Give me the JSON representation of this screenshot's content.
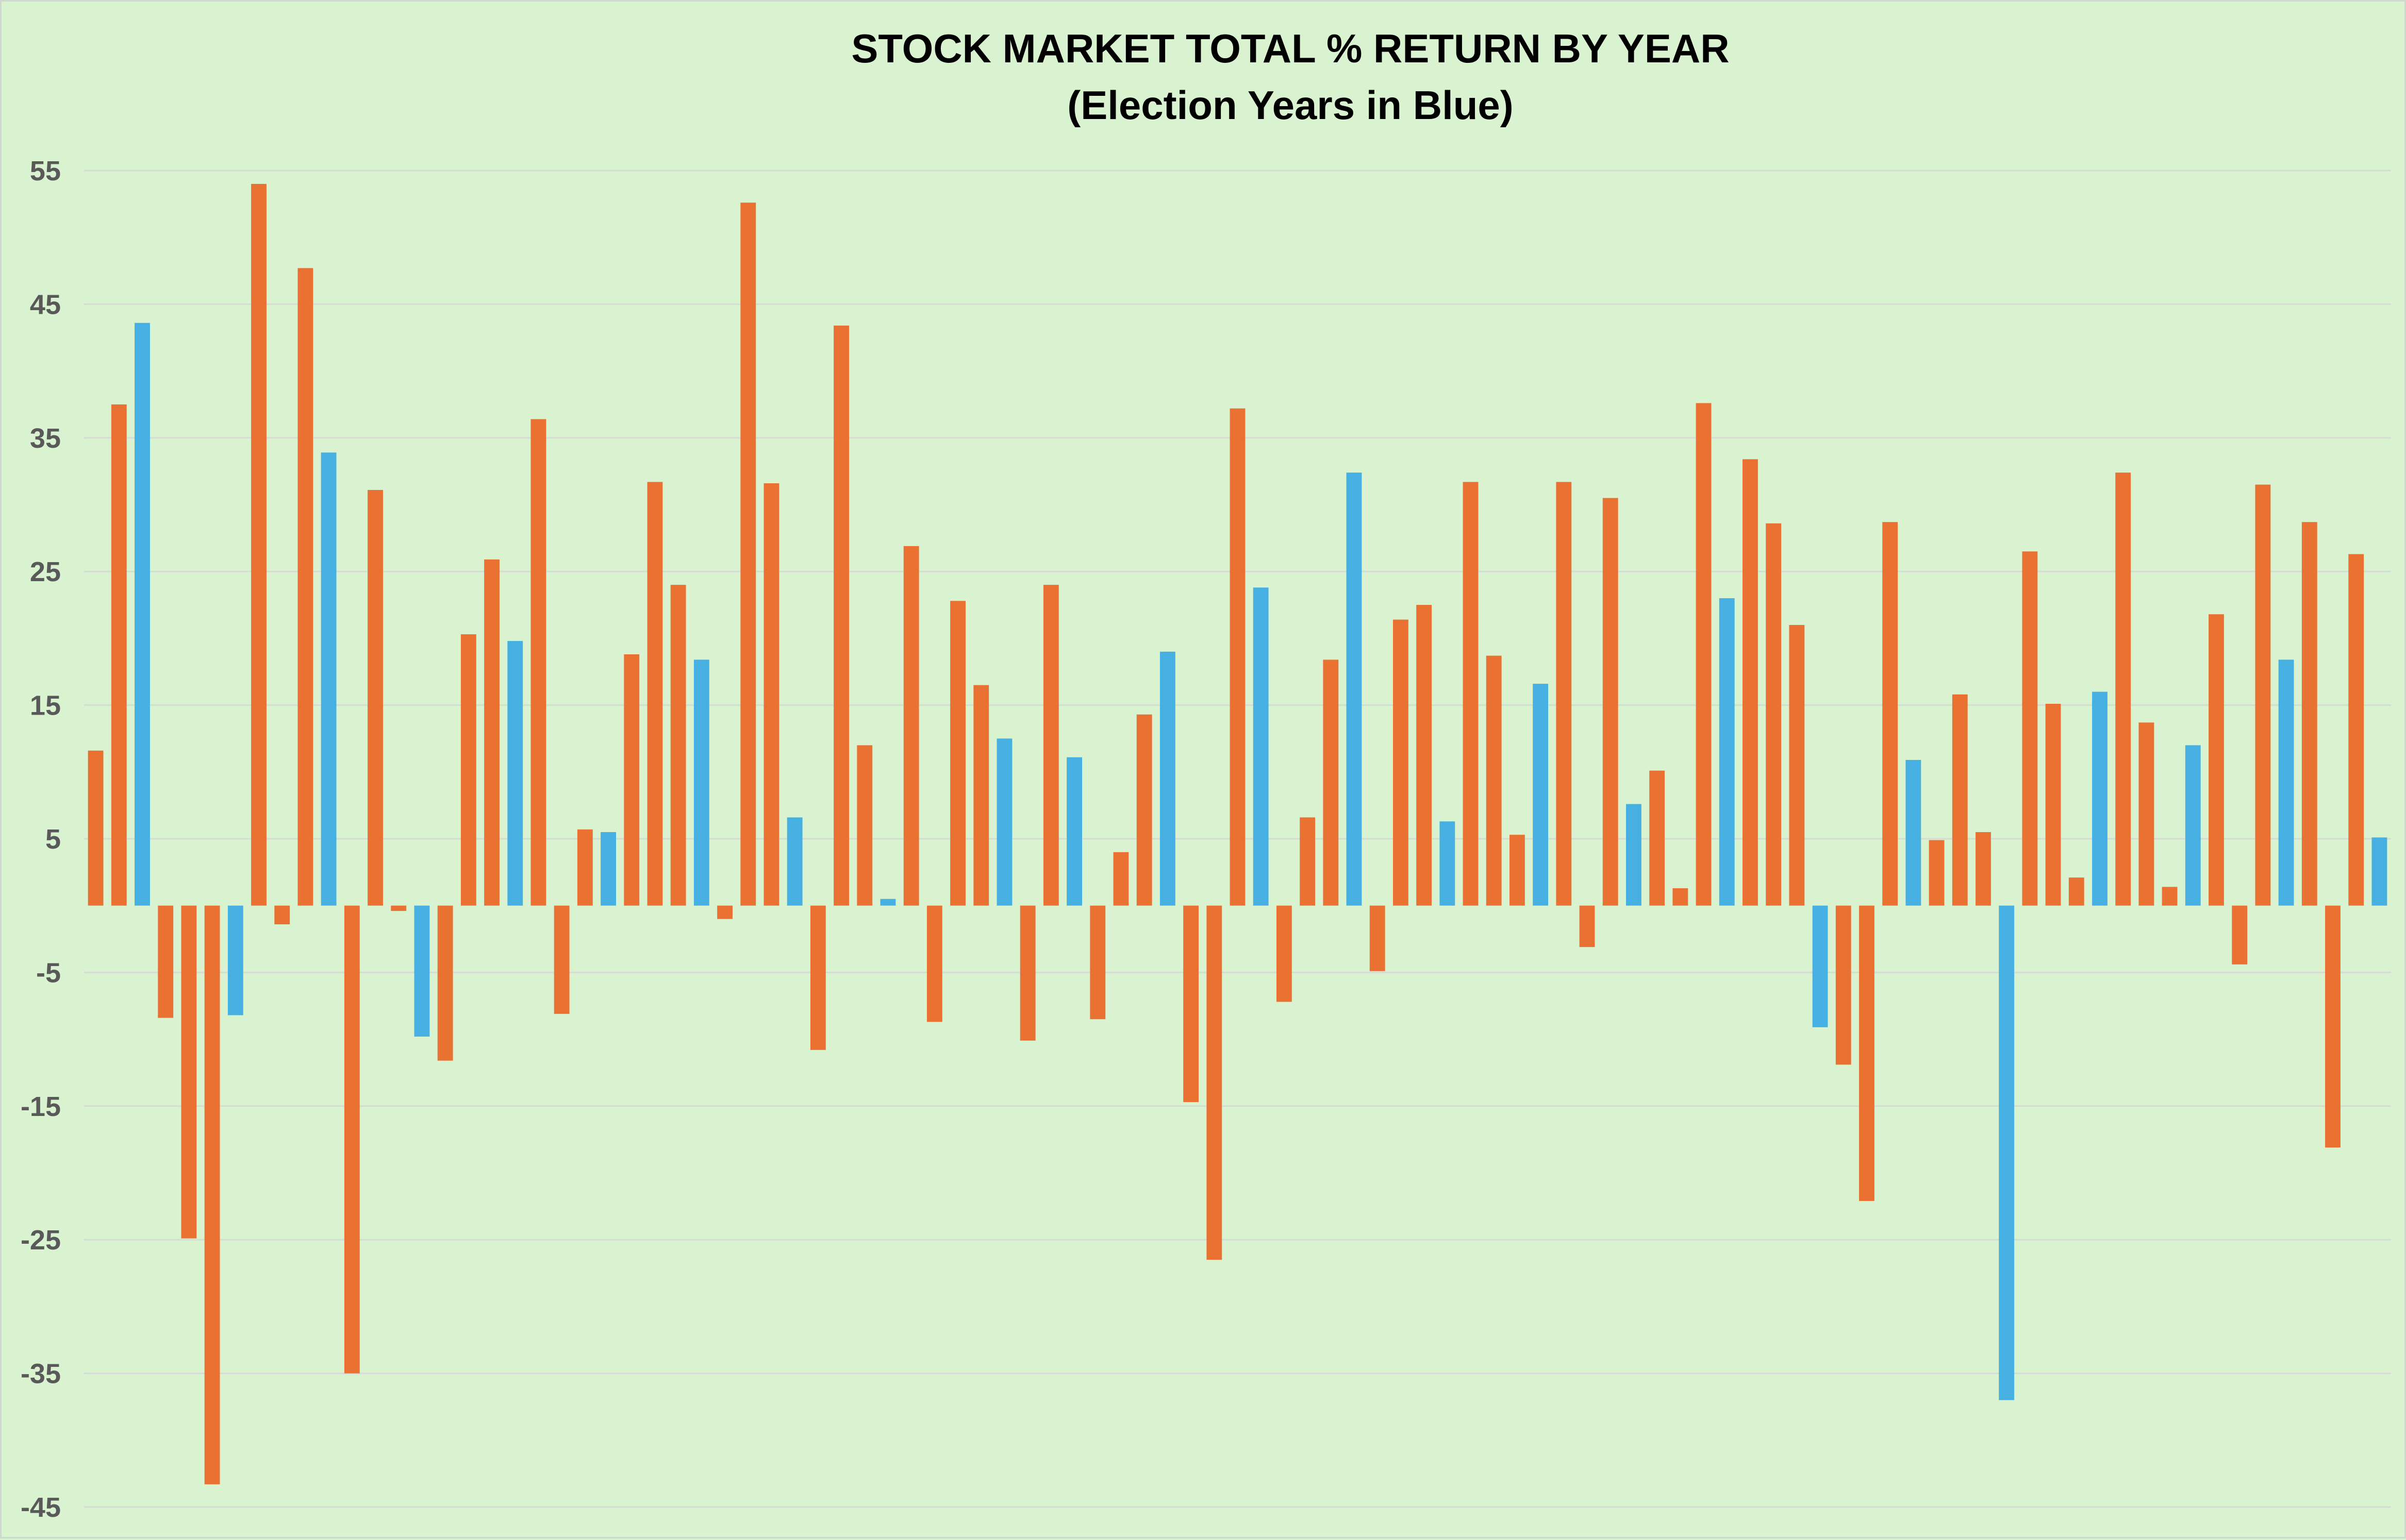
{
  "chart_data": {
    "type": "bar",
    "title": "STOCK MARKET TOTAL % RETURN BY YEAR",
    "subtitle": "(Election Years in Blue)",
    "xlabel": "",
    "ylabel": "",
    "ylim": [
      -45,
      55
    ],
    "yticks": [
      55,
      45,
      35,
      25,
      15,
      5,
      -5,
      -15,
      -25,
      -35,
      -45
    ],
    "grid": true,
    "legend": "none",
    "colors": {
      "election": "#45b0e1",
      "other": "#e97132",
      "background": "#d9f2d0",
      "gridline": "#d6dcd3",
      "tick_text": "#595959"
    },
    "values": [
      11.6,
      37.5,
      43.6,
      -8.4,
      -24.9,
      -43.3,
      -8.2,
      54.0,
      -1.4,
      47.7,
      33.9,
      -35.0,
      31.1,
      -0.4,
      -9.8,
      -11.6,
      20.3,
      25.9,
      19.8,
      36.4,
      -8.1,
      5.7,
      5.5,
      18.8,
      31.7,
      24.0,
      18.4,
      -1.0,
      52.6,
      31.6,
      6.6,
      -10.8,
      43.4,
      12.0,
      0.5,
      26.9,
      -8.7,
      22.8,
      16.5,
      12.5,
      -10.1,
      24.0,
      11.1,
      -8.5,
      4.0,
      14.3,
      19.0,
      -14.7,
      -26.5,
      37.2,
      23.8,
      -7.2,
      6.6,
      18.4,
      32.4,
      -4.9,
      21.4,
      22.5,
      6.3,
      31.7,
      18.7,
      5.3,
      16.6,
      31.7,
      -3.1,
      30.5,
      7.6,
      10.1,
      1.3,
      37.6,
      23.0,
      33.4,
      28.6,
      21.0,
      -9.1,
      -11.9,
      -22.1,
      28.7,
      10.9,
      4.9,
      15.8,
      5.5,
      -37.0,
      26.5,
      15.1,
      2.1,
      16.0,
      32.4,
      13.7,
      1.4,
      12.0,
      21.8,
      -4.4,
      31.5,
      18.4,
      28.7,
      -18.1,
      26.3,
      5.1
    ],
    "election_flags": [
      0,
      0,
      1,
      0,
      0,
      0,
      1,
      0,
      0,
      0,
      1,
      0,
      0,
      0,
      1,
      0,
      0,
      0,
      1,
      0,
      0,
      0,
      1,
      0,
      0,
      0,
      1,
      0,
      0,
      0,
      1,
      0,
      0,
      0,
      1,
      0,
      0,
      0,
      0,
      1,
      0,
      0,
      1,
      0,
      0,
      0,
      1,
      0,
      0,
      0,
      1,
      0,
      0,
      0,
      1,
      0,
      0,
      0,
      1,
      0,
      0,
      0,
      1,
      0,
      0,
      0,
      1,
      0,
      0,
      0,
      1,
      0,
      0,
      0,
      1,
      0,
      0,
      0,
      1,
      0,
      0,
      0,
      1,
      0,
      0,
      0,
      1,
      0,
      0,
      0,
      1,
      0,
      0,
      0,
      1,
      0,
      0,
      0,
      1
    ]
  }
}
